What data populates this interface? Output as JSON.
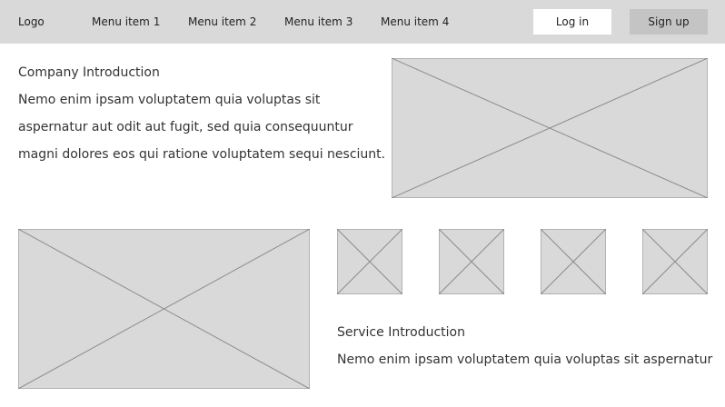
{
  "header": {
    "logo": "Logo",
    "menu": [
      "Menu item 1",
      "Menu item 2",
      "Menu item 3",
      "Menu item 4"
    ],
    "login_label": "Log in",
    "signup_label": "Sign up"
  },
  "company": {
    "title": "Company Introduction",
    "lines": [
      "Nemo enim ipsam voluptatem quia voluptas sit",
      "aspernatur aut odit aut fugit, sed quia consequuntur",
      "magni dolores eos qui ratione voluptatem sequi nesciunt."
    ]
  },
  "service": {
    "title": "Service Introduction",
    "text": "Nemo enim ipsam voluptatem quia voluptas sit aspernatur"
  },
  "colors": {
    "header_bg": "#d9d9d9",
    "placeholder_fill": "#d9d9d9",
    "placeholder_stroke": "#8c8c8c"
  }
}
